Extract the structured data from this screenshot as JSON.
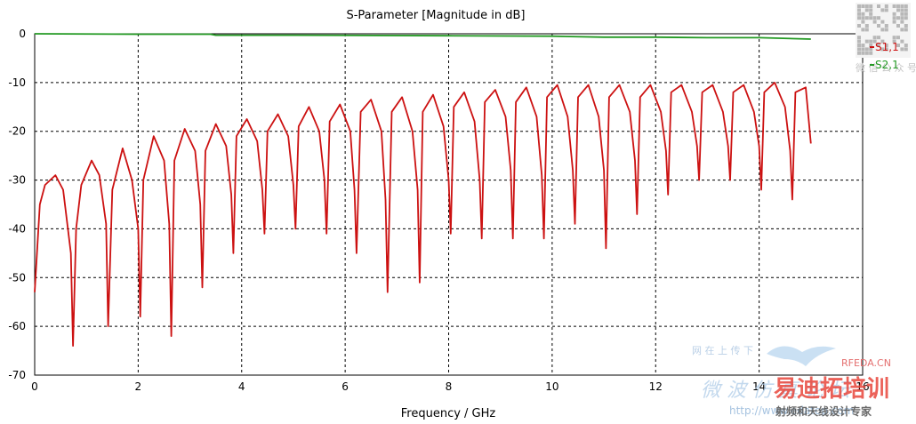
{
  "chart_data": {
    "type": "line",
    "title": "S-Parameter [Magnitude in dB]",
    "xlabel": "Frequency / GHz",
    "ylabel": "",
    "xlim": [
      0,
      16
    ],
    "ylim": [
      -70,
      0
    ],
    "xticks": [
      0,
      2,
      4,
      6,
      8,
      10,
      12,
      14,
      16
    ],
    "yticks": [
      0,
      -10,
      -20,
      -30,
      -40,
      -50,
      -60,
      -70
    ],
    "grid": true,
    "legend_position": "top-right",
    "series": [
      {
        "name": "S1,1",
        "color": "#cc1111",
        "x": [
          0,
          0.1,
          0.2,
          0.4,
          0.55,
          0.7,
          0.74,
          0.8,
          0.9,
          1.1,
          1.25,
          1.38,
          1.42,
          1.5,
          1.7,
          1.88,
          2.0,
          2.04,
          2.1,
          2.3,
          2.5,
          2.6,
          2.64,
          2.7,
          2.9,
          3.1,
          3.2,
          3.24,
          3.3,
          3.5,
          3.7,
          3.8,
          3.84,
          3.9,
          4.1,
          4.3,
          4.4,
          4.44,
          4.5,
          4.7,
          4.9,
          5.0,
          5.04,
          5.1,
          5.3,
          5.5,
          5.6,
          5.64,
          5.7,
          5.9,
          6.1,
          6.18,
          6.22,
          6.3,
          6.5,
          6.7,
          6.78,
          6.82,
          6.9,
          7.1,
          7.3,
          7.4,
          7.44,
          7.5,
          7.7,
          7.9,
          8.0,
          8.04,
          8.1,
          8.3,
          8.5,
          8.6,
          8.64,
          8.7,
          8.9,
          9.1,
          9.2,
          9.24,
          9.3,
          9.5,
          9.7,
          9.8,
          9.84,
          9.9,
          10.1,
          10.3,
          10.4,
          10.44,
          10.5,
          10.7,
          10.9,
          11.0,
          11.04,
          11.1,
          11.3,
          11.5,
          11.6,
          11.64,
          11.7,
          11.9,
          12.1,
          12.2,
          12.24,
          12.3,
          12.5,
          12.7,
          12.8,
          12.84,
          12.9,
          13.1,
          13.3,
          13.4,
          13.44,
          13.5,
          13.7,
          13.9,
          14.0,
          14.04,
          14.1,
          14.3,
          14.5,
          14.6,
          14.64,
          14.7,
          14.9,
          15.0
        ],
        "y": [
          -53,
          -35,
          -31,
          -29,
          -32,
          -45,
          -64,
          -40,
          -31,
          -26,
          -29,
          -39,
          -60,
          -32,
          -23.5,
          -30,
          -40,
          -58,
          -30,
          -21,
          -26,
          -39,
          -62,
          -26,
          -19.5,
          -24,
          -35,
          -52,
          -24,
          -18.5,
          -23,
          -33,
          -45,
          -21,
          -17.5,
          -22,
          -32,
          -41,
          -20,
          -16.5,
          -21,
          -31,
          -40,
          -19,
          -15,
          -20,
          -30,
          -41,
          -18,
          -14.5,
          -20,
          -32,
          -45,
          -16,
          -13.5,
          -20,
          -34,
          -53,
          -16,
          -13,
          -20,
          -32,
          -51,
          -16,
          -12.5,
          -19,
          -30,
          -41,
          -15,
          -12,
          -18,
          -30,
          -42,
          -14,
          -11.5,
          -17,
          -28,
          -42,
          -14,
          -11,
          -17,
          -29,
          -42,
          -13,
          -10.5,
          -17,
          -28,
          -39,
          -13,
          -10.5,
          -17,
          -28,
          -44,
          -13,
          -10.5,
          -16,
          -26,
          -37,
          -13,
          -10.5,
          -16,
          -24,
          -33,
          -12,
          -10.5,
          -16,
          -23,
          -30,
          -12,
          -10.5,
          -16,
          -23,
          -30,
          -12,
          -10.5,
          -16,
          -23,
          -32,
          -12,
          -10,
          -15,
          -24,
          -34,
          -12,
          -11,
          -22.5
        ]
      },
      {
        "name": "S2,1",
        "color": "#229922",
        "x": [
          0,
          2,
          3.4,
          3.5,
          5.0,
          8.0,
          10.0,
          11.0,
          12.0,
          13.0,
          14.0,
          15.0
        ],
        "y": [
          0,
          -0.1,
          -0.1,
          -0.3,
          -0.3,
          -0.4,
          -0.5,
          -0.7,
          -0.7,
          -0.8,
          -0.8,
          -1.1
        ]
      }
    ]
  },
  "watermark": {
    "qr_caption": "微 信 公 众 号 系",
    "site_cn": "网 在 上 传 下",
    "site_en": "RFEDA.CN",
    "script_text": "微 波 仿 真 论 坛",
    "brand": "易迪拓培训",
    "url": "http://www.edatop.com",
    "slogan": "射频和天线设计专家"
  }
}
